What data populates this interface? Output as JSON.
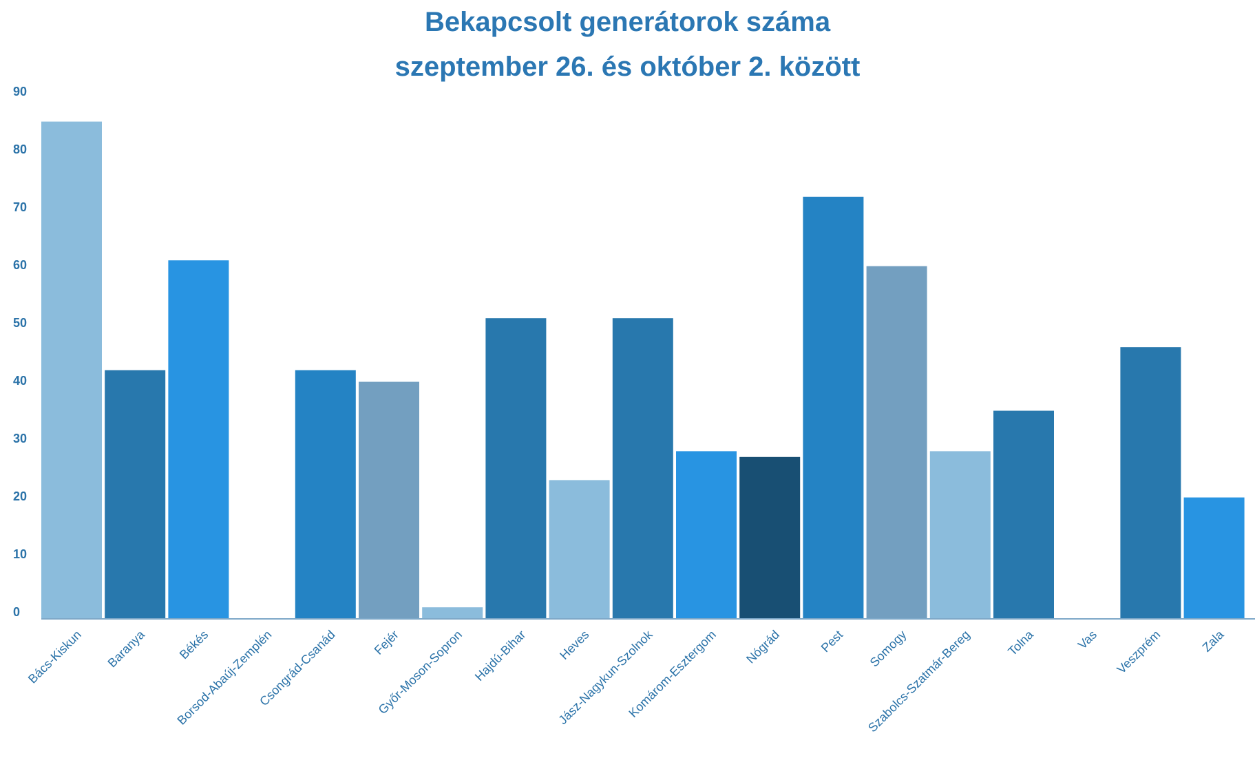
{
  "chart_data": {
    "type": "bar",
    "title": "Bekapcsolt generátorok száma",
    "subtitle": "szeptember 26. és október 2. között",
    "xlabel": "",
    "ylabel": "",
    "ylim": [
      0,
      90
    ],
    "yticks": [
      0,
      10,
      20,
      30,
      40,
      50,
      60,
      70,
      80,
      90
    ],
    "grid": false,
    "categories": [
      "Bács-Kiskun",
      "Baranya",
      "Békés",
      "Borsod-Abaúj-Zemplén",
      "Csongrád-Csanád",
      "Fejér",
      "Győr-Moson-Sopron",
      "Hajdú-Bihar",
      "Heves",
      "Jász-Nagykun-Szolnok",
      "Komárom-Esztergom",
      "Nógrád",
      "Pest",
      "Somogy",
      "Szabolcs-Szatmár-Bereg",
      "Tolna",
      "Vas",
      "Veszprém",
      "Zala"
    ],
    "values": [
      86,
      43,
      62,
      0,
      43,
      41,
      2,
      52,
      24,
      52,
      29,
      28,
      73,
      61,
      29,
      36,
      0,
      47,
      21
    ],
    "colors": [
      "#8bbcdc",
      "#2878ad",
      "#2894e2",
      "#2894e2",
      "#2483c4",
      "#739fc0",
      "#8bbcdc",
      "#2878ad",
      "#8bbcdc",
      "#2878ad",
      "#2894e2",
      "#184f73",
      "#2483c4",
      "#739fc0",
      "#8bbcdc",
      "#2878ad",
      "#2894e2",
      "#2878ad",
      "#2894e2"
    ]
  }
}
